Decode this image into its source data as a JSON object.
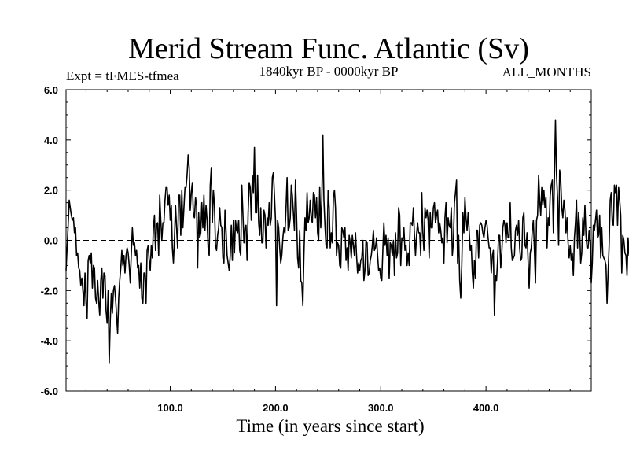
{
  "chart_data": {
    "type": "line",
    "title": "Merid Stream Func. Atlantic (Sv)",
    "subtitle_left": "Expt = tFMES-tfmea",
    "subtitle_center": "1840kyr BP - 0000kyr BP",
    "subtitle_right": "ALL_MONTHS",
    "xlabel": "Time (in years since start)",
    "ylabel": "",
    "xlim": [
      1,
      500
    ],
    "ylim": [
      -6,
      6
    ],
    "x_ticks": [
      100,
      200,
      300,
      400
    ],
    "x_tick_labels": [
      "100.0",
      "200.0",
      "300.0",
      "400.0"
    ],
    "y_ticks": [
      -6,
      -4,
      -2,
      0,
      2,
      4,
      6
    ],
    "y_tick_labels": [
      "-6.0",
      "-4.0",
      "-2.0",
      "0.0",
      "2.0",
      "4.0",
      "6.0"
    ],
    "zero_line": true,
    "grid": false,
    "series": [
      {
        "name": "Merid Stream Func. Atlantic",
        "color": "#000000",
        "x_start": 1,
        "x_step": 1,
        "values": [
          -1.2,
          -0.3,
          0.6,
          1.6,
          1.3,
          1.0,
          0.8,
          0.9,
          0.3,
          0.5,
          -0.6,
          -0.5,
          -1.1,
          -1.2,
          -1.8,
          -1.5,
          -2.0,
          -2.6,
          -1.3,
          -2.5,
          -3.1,
          -0.8,
          -0.6,
          -0.9,
          -0.5,
          -1.9,
          -1.0,
          -1.1,
          -2.3,
          -2.5,
          -1.6,
          -2.4,
          -3.0,
          -1.6,
          -1.1,
          -2.3,
          -1.3,
          -1.4,
          -2.8,
          -3.3,
          -2.0,
          -4.9,
          -3.2,
          -2.1,
          -2.9,
          -2.0,
          -1.8,
          -2.3,
          -3.0,
          -3.7,
          -2.3,
          -1.6,
          -1.1,
          -0.4,
          -1.0,
          -0.6,
          -1.3,
          -0.6,
          -0.3,
          -0.5,
          -1.0,
          -1.7,
          -0.5,
          0.5,
          -0.2,
          -0.1,
          -0.6,
          -0.4,
          -1.1,
          -1.0,
          -1.9,
          -0.9,
          -2.3,
          -2.5,
          -1.3,
          -1.3,
          -2.5,
          -0.4,
          -0.2,
          -0.8,
          -1.2,
          -0.2,
          -0.7,
          0.5,
          1.0,
          -0.4,
          0.6,
          0.7,
          -0.6,
          1.8,
          0.8,
          0.0,
          0.7,
          0.7,
          1.6,
          2.1,
          2.1,
          1.4,
          1.8,
          0.8,
          1.4,
          -0.3,
          -0.9,
          0.1,
          1.4,
          0.5,
          -0.3,
          1.8,
          1.8,
          0.2,
          2.0,
          0.5,
          1.3,
          2.1,
          2.1,
          2.6,
          3.4,
          2.9,
          1.2,
          1.9,
          2.3,
          1.0,
          0.9,
          1.7,
          1.4,
          -1.1,
          1.1,
          0.1,
          0.3,
          1.5,
          0.5,
          1.8,
          0.4,
          1.4,
          0.8,
          -0.3,
          -0.6,
          2.2,
          2.9,
          0.7,
          2.0,
          1.4,
          -0.2,
          -0.4,
          0.2,
          0.5,
          1.3,
          0.6,
          0.5,
          -0.7,
          -0.9,
          1.2,
          0.4,
          -0.6,
          -0.9,
          -1.2,
          -0.6,
          0.6,
          -0.8,
          0.8,
          -0.5,
          0.8,
          0.4,
          0.3,
          0.8,
          -0.4,
          -0.6,
          2.2,
          1.1,
          -0.1,
          0.5,
          0.6,
          -0.8,
          1.1,
          2.3,
          2.1,
          0.8,
          2.6,
          1.9,
          3.7,
          1.1,
          1.1,
          2.6,
          0.7,
          0.2,
          1.3,
          -0.1,
          -0.1,
          1.2,
          1.0,
          -0.3,
          0.9,
          0.6,
          1.5,
          0.6,
          0.9,
          2.5,
          2.7,
          1.8,
          0.8,
          -2.6,
          0.8,
          0.5,
          -0.3,
          -0.9,
          -0.6,
          0.1,
          0.5,
          0.3,
          1.3,
          2.5,
          0.4,
          0.5,
          0.9,
          2.2,
          1.8,
          1.1,
          0.4,
          2.4,
          1.0,
          -0.7,
          -1.1,
          0.4,
          -1.6,
          -1.7,
          -2.6,
          -0.6,
          0.9,
          0.4,
          1.9,
          0.7,
          0.9,
          1.6,
          0.9,
          0.7,
          1.9,
          1.8,
          0.9,
          1.7,
          0.3,
          0.0,
          2.1,
          0.5,
          1.6,
          4.2,
          1.6,
          0.6,
          -0.2,
          -0.3,
          2.0,
          1.3,
          -0.3,
          0.3,
          -0.1,
          1.7,
          2.0,
          1.3,
          -0.6,
          -0.1,
          -0.2,
          -1.0,
          -1.1,
          0.5,
          0.4,
          0.1,
          0.5,
          -0.8,
          -0.3,
          -1.2,
          0.2,
          -0.1,
          -0.7,
          0.2,
          -0.2,
          -0.6,
          0.3,
          -0.6,
          -1.3,
          -0.9,
          -1.2,
          -0.8,
          -0.7,
          0.0,
          -1.6,
          -1.2,
          0.0,
          -0.1,
          -1.4,
          -1.3,
          -0.8,
          -0.6,
          -0.2,
          0.4,
          -0.4,
          -0.3,
          0.1,
          -0.6,
          -1.2,
          -1.1,
          -1.5,
          -1.6,
          -0.4,
          0.7,
          -0.2,
          0.2,
          -0.6,
          0.1,
          -1.5,
          -0.1,
          -0.2,
          -0.6,
          0.0,
          -1.4,
          0.3,
          -0.7,
          -0.5,
          1.3,
          1.0,
          -1.0,
          0.1,
          0.0,
          0.5,
          -0.4,
          -0.2,
          -1.0,
          -0.5,
          -1.0,
          0.7,
          0.7,
          0.6,
          1.3,
          0.2,
          -0.6,
          0.2,
          0.7,
          0.3,
          0.3,
          -0.6,
          1.9,
          0.3,
          -0.4,
          1.3,
          0.9,
          1.2,
          0.8,
          -0.7,
          1.1,
          0.5,
          0.5,
          1.3,
          1.5,
          0.7,
          1.0,
          1.2,
          0.3,
          0.7,
          0.4,
          -0.1,
          0.1,
          -0.9,
          0.9,
          1.5,
          -0.1,
          0.9,
          0.6,
          0.5,
          1.3,
          -0.6,
          -0.1,
          1.5,
          1.9,
          2.4,
          -0.9,
          0.2,
          -1.6,
          -2.3,
          -1.0,
          1.1,
          0.3,
          1.7,
          0.9,
          0.4,
          1.1,
          0.4,
          -0.4,
          -0.2,
          -1.3,
          -1.9,
          -0.8,
          -1.5,
          0.4,
          0.4,
          -0.7,
          0.6,
          0.7,
          0.6,
          0.3,
          0.1,
          0.5,
          0.8,
          0.6,
          0.1,
          -0.3,
          -0.3,
          -1.3,
          -0.6,
          -0.4,
          -3.0,
          -1.4,
          -1.6,
          -0.8,
          0.2,
          0.2,
          -1.1,
          -0.5,
          0.5,
          0.8,
          0.6,
          -0.1,
          0.7,
          0.1,
          0.1,
          1.5,
          -0.3,
          -0.8,
          -0.7,
          -0.6,
          0.4,
          0.6,
          0.2,
          0.8,
          -0.3,
          -0.8,
          -0.7,
          0.9,
          1.1,
          -0.2,
          -0.3,
          0.3,
          -0.8,
          -1.9,
          -0.5,
          -0.3,
          0.4,
          0.8,
          -0.4,
          -1.7,
          0.8,
          1.0,
          2.6,
          1.6,
          1.0,
          2.1,
          1.4,
          2.0,
          1.3,
          1.7,
          -0.3,
          0.9,
          0.6,
          1.8,
          2.2,
          2.4,
          0.3,
          2.5,
          4.8,
          2.6,
          1.7,
          -0.2,
          2.8,
          2.4,
          1.3,
          0.9,
          1.6,
          1.2,
          0.3,
          0.9,
          -0.1,
          -0.7,
          -0.2,
          -0.8,
          -0.5,
          -1.4,
          0.1,
          0.7,
          1.6,
          -0.3,
          1.1,
          0.4,
          -0.9,
          -0.5,
          0.9,
          0.2,
          1.4,
          0.2,
          -0.3,
          -0.3,
          0.4,
          -0.1,
          -1.7,
          -0.9,
          0.6,
          0.4,
          0.8,
          1.2,
          0.1,
          0.2,
          1.0,
          -0.7,
          0.5,
          -0.6,
          -0.7,
          -0.8,
          -1.0,
          -2.5,
          -1.3,
          -0.2,
          1.6,
          1.9,
          0.7,
          0.6,
          2.2,
          1.9,
          2.2,
          0.6,
          2.1,
          1.6,
          1.0,
          -1.3,
          0.2,
          0.0,
          -0.5,
          -0.6,
          -1.4,
          0.1,
          -0.6,
          0.8,
          0.7,
          0.9,
          1.2,
          -0.1,
          0.0,
          -0.3,
          -0.2,
          0.2,
          1.7,
          -0.3,
          0.3,
          0.6,
          -0.7,
          -0.6,
          -1.2,
          -0.8,
          -0.1,
          -1.0,
          -1.1,
          -0.9,
          -1.4,
          -1.0,
          -1.5,
          0.2,
          0.9,
          -0.2,
          1.1,
          0.8,
          -0.3,
          0.3,
          -0.1,
          0.4,
          -0.1,
          -1.2,
          -1.1,
          -1.3,
          0.5,
          -0.3,
          -0.6,
          -1.7,
          -2.9,
          -2.1,
          -1.5,
          -1.6,
          -0.6,
          -0.2,
          0.9,
          -0.7,
          0.1,
          0.3,
          0.4,
          0.5,
          0.9,
          0.3,
          -0.6,
          0.3,
          1.0,
          0.5,
          -0.3,
          -0.8,
          -1.2,
          -0.8,
          -0.5,
          -0.4,
          -1.0,
          -2.0,
          -1.0,
          0.3,
          0.3,
          0.6,
          1.3,
          -0.2,
          0.8,
          0.2,
          0.4,
          0.7,
          0.1,
          -0.1,
          0.9,
          2.0,
          2.1,
          1.6,
          1.4,
          2.3,
          2.9,
          2.2,
          2.0,
          1.1,
          1.7,
          1.2,
          1.5,
          1.1,
          -0.4,
          -2.0,
          -0.7,
          -1.0,
          1.0,
          1.5,
          0.9,
          1.2,
          -0.4,
          -0.9,
          -0.5
        ]
      }
    ]
  }
}
